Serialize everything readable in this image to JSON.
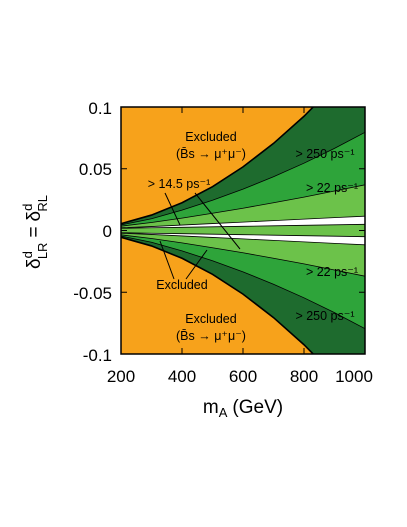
{
  "chart_data": {
    "type": "area",
    "title": "",
    "xlabel": "m",
    "xlabel_sub": "A",
    "xlabel_unit": "(GeV)",
    "ylabel_parts": {
      "lhs": "δ",
      "lhs_sup": "d",
      "lhs_sub": "LR",
      "eq": "=",
      "rhs": "δ",
      "rhs_sup": "d",
      "rhs_sub": "RL"
    },
    "xlim": [
      200,
      1000
    ],
    "ylim": [
      -0.1,
      0.1
    ],
    "xticks": [
      "200",
      "400",
      "600",
      "800",
      "1000"
    ],
    "yticks": [
      "0.1",
      "0.05",
      "0",
      "-0.05",
      "-0.1"
    ],
    "grid": false,
    "colors": {
      "excluded": "#F7A21B",
      "dark_green": "#1E6B2E",
      "mid_green": "#2EA43A",
      "light_green": "#6CC24A",
      "allowed": "#FFFFFF"
    },
    "boundaries": {
      "x": [
        200,
        300,
        400,
        500,
        600,
        700,
        800,
        900,
        1000
      ],
      "excluded_edge": [
        0.0055,
        0.0125,
        0.0225,
        0.0355,
        0.0515,
        0.0705,
        0.0925,
        0.1175,
        0.1455
      ],
      "ps250_edge": [
        0.0045,
        0.0095,
        0.0165,
        0.0245,
        0.0335,
        0.0435,
        0.0545,
        0.0665,
        0.0795
      ],
      "ps22_edge": [
        0.0035,
        0.0065,
        0.01,
        0.014,
        0.018,
        0.0225,
        0.027,
        0.032,
        0.037
      ],
      "white_edge": [
        0.0022,
        0.0032,
        0.0044,
        0.0056,
        0.0068,
        0.008,
        0.0092,
        0.0104,
        0.0116
      ],
      "inner_edge": [
        0.0018,
        0.0022,
        0.0026,
        0.003,
        0.0034,
        0.0038,
        0.0042,
        0.0046,
        0.005
      ]
    },
    "annotations": {
      "excluded_top": "Excluded",
      "excluded_top_process": "(B̄s → μ⁺μ⁻)",
      "excluded_bottom": "Excluded",
      "excluded_bottom_process": "(B̄s → μ⁺μ⁻)",
      "excluded_middle": "Excluded",
      "ps250_top": "> 250 ps⁻¹",
      "ps250_bottom": "> 250 ps⁻¹",
      "ps22_top": "> 22 ps⁻¹",
      "ps22_bottom": "> 22 ps⁻¹",
      "ps14_5": "> 14.5 ps⁻¹"
    }
  }
}
